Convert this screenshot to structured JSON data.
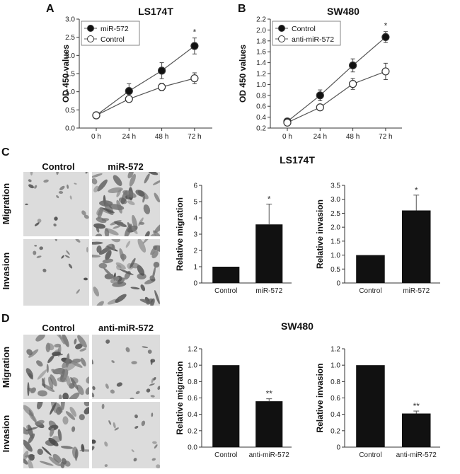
{
  "panels": {
    "A": {
      "label": "A",
      "title": "LS174T"
    },
    "B": {
      "label": "B",
      "title": "SW480"
    },
    "C": {
      "label": "C",
      "section_title": "LS174T",
      "col_labels": [
        "Control",
        "miR-572"
      ],
      "row_labels": [
        "Migration",
        "Invasion"
      ]
    },
    "D": {
      "label": "D",
      "section_title": "SW480",
      "col_labels": [
        "Control",
        "anti-miR-572"
      ],
      "row_labels": [
        "Migration",
        "Invasion"
      ]
    }
  },
  "chart_data": [
    {
      "id": "A",
      "type": "line",
      "x": [
        "0 h",
        "24 h",
        "48 h",
        "72 h"
      ],
      "ylabel": "OD 450 values",
      "ylim": [
        0,
        3.0
      ],
      "yticks": [
        "0.0",
        "0.5",
        "1.0",
        "1.5",
        "2.0",
        "2.5",
        "3.0"
      ],
      "legend": "top-left",
      "series": [
        {
          "name": "miR-572",
          "marker": "filled",
          "values": [
            0.35,
            1.02,
            1.58,
            2.26
          ],
          "errors": [
            0.05,
            0.2,
            0.22,
            0.22
          ]
        },
        {
          "name": "Control",
          "marker": "open",
          "values": [
            0.35,
            0.8,
            1.13,
            1.37
          ],
          "errors": [
            0.05,
            0.08,
            0.1,
            0.15
          ]
        }
      ],
      "annotations": [
        {
          "x": "72 h",
          "text": "*"
        }
      ]
    },
    {
      "id": "B",
      "type": "line",
      "x": [
        "0 h",
        "24 h",
        "48 h",
        "72 h"
      ],
      "ylabel": "OD 450 values",
      "ylim": [
        0.2,
        2.2
      ],
      "yticks": [
        "0.2",
        "0.4",
        "0.6",
        "0.8",
        "1.0",
        "1.2",
        "1.4",
        "1.6",
        "1.8",
        "2.0",
        "2.2"
      ],
      "legend": "top-left",
      "series": [
        {
          "name": "Control",
          "marker": "filled",
          "values": [
            0.32,
            0.8,
            1.35,
            1.87
          ],
          "errors": [
            0.03,
            0.1,
            0.12,
            0.1
          ]
        },
        {
          "name": "anti-miR-572",
          "marker": "open",
          "values": [
            0.3,
            0.58,
            1.01,
            1.24
          ],
          "errors": [
            0.03,
            0.05,
            0.1,
            0.15
          ]
        }
      ],
      "annotations": [
        {
          "x": "72 h",
          "text": "*"
        }
      ]
    },
    {
      "id": "C-migration",
      "type": "bar",
      "categories": [
        "Control",
        "miR-572"
      ],
      "values": [
        1.0,
        3.6
      ],
      "errors": [
        0,
        1.25
      ],
      "ylabel": "Relative migration",
      "ylim": [
        0,
        6
      ],
      "yticks": [
        "0",
        "1",
        "2",
        "3",
        "4",
        "5",
        "6"
      ],
      "annotations": [
        {
          "category": "miR-572",
          "text": "*"
        }
      ]
    },
    {
      "id": "C-invasion",
      "type": "bar",
      "categories": [
        "Control",
        "miR-572"
      ],
      "values": [
        1.0,
        2.6
      ],
      "errors": [
        0,
        0.55
      ],
      "ylabel": "Relative invasion",
      "ylim": [
        0,
        3.5
      ],
      "yticks": [
        "0",
        "0.5",
        "1.0",
        "1.5",
        "2.0",
        "2.5",
        "3.0",
        "3.5"
      ],
      "annotations": [
        {
          "category": "miR-572",
          "text": "*"
        }
      ]
    },
    {
      "id": "D-migration",
      "type": "bar",
      "categories": [
        "Control",
        "anti-miR-572"
      ],
      "values": [
        1.0,
        0.56
      ],
      "errors": [
        0,
        0.03
      ],
      "ylabel": "Relative migration",
      "ylim": [
        0,
        1.2
      ],
      "yticks": [
        "0.0",
        "0.2",
        "0.4",
        "0.6",
        "0.8",
        "1.0",
        "1.2"
      ],
      "annotations": [
        {
          "category": "anti-miR-572",
          "text": "**"
        }
      ]
    },
    {
      "id": "D-invasion",
      "type": "bar",
      "categories": [
        "Control",
        "anti-miR-572"
      ],
      "values": [
        1.0,
        0.41
      ],
      "errors": [
        0,
        0.03
      ],
      "ylabel": "Relative invasion",
      "ylim": [
        0,
        1.2
      ],
      "yticks": [
        "0",
        "0.2",
        "0.4",
        "0.6",
        "0.8",
        "1.0",
        "1.2"
      ],
      "annotations": [
        {
          "category": "anti-miR-572",
          "text": "**"
        }
      ]
    }
  ]
}
